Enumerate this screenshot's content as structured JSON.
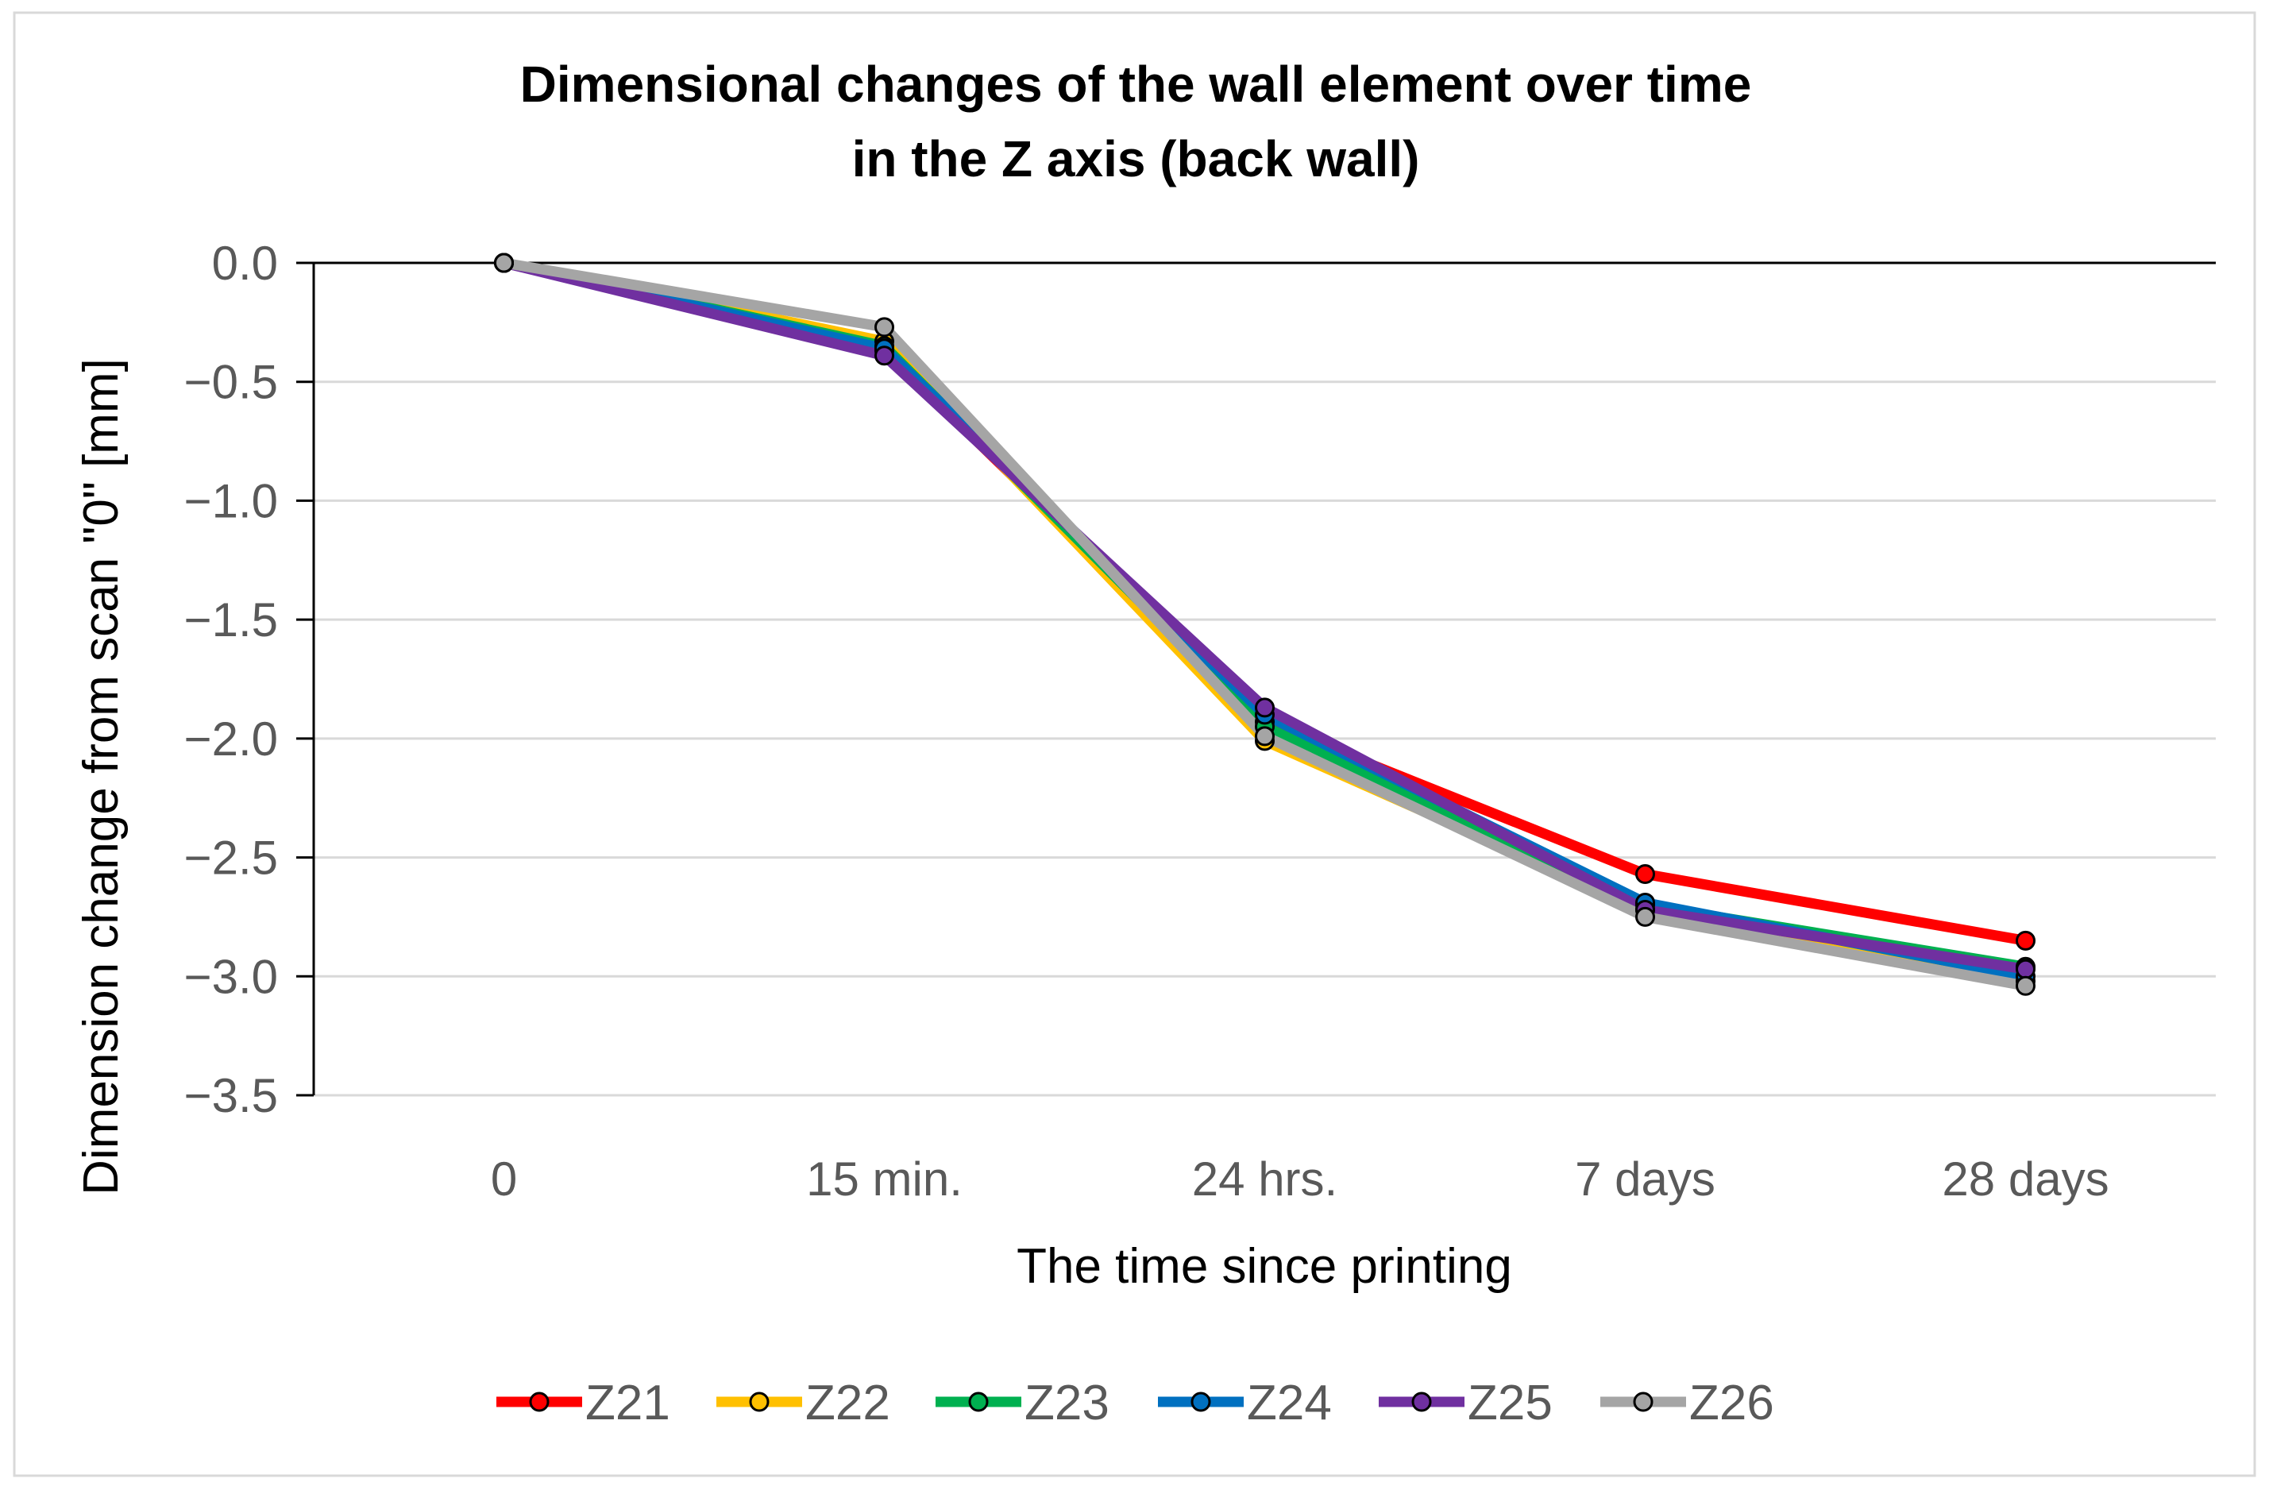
{
  "chart_data": {
    "type": "line",
    "title_lines": [
      "Dimensional changes of the wall element over time",
      "in the Z axis (back wall)"
    ],
    "xlabel": "The time since printing",
    "ylabel": "Dimension change from scan \"0\" [mm]",
    "categories": [
      "0",
      "15 min.",
      "24 hrs.",
      "7 days",
      "28 days"
    ],
    "ylim": [
      -3.5,
      0.0
    ],
    "yticks": [
      0.0,
      -0.5,
      -1.0,
      -1.5,
      -2.0,
      -2.5,
      -3.0,
      -3.5
    ],
    "ytick_labels": [
      "0.0",
      "−0.5",
      "−1.0",
      "−1.5",
      "−2.0",
      "−2.5",
      "−3.0",
      "−3.5"
    ],
    "grid": true,
    "legend_position": "bottom",
    "series": [
      {
        "name": "Z21",
        "color": "#ff0000",
        "values": [
          0.0,
          -0.37,
          -1.93,
          -2.57,
          -2.85
        ]
      },
      {
        "name": "Z22",
        "color": "#ffc000",
        "values": [
          0.0,
          -0.33,
          -2.01,
          -2.72,
          -3.02
        ]
      },
      {
        "name": "Z23",
        "color": "#00b050",
        "values": [
          0.0,
          -0.35,
          -1.95,
          -2.7,
          -2.96
        ]
      },
      {
        "name": "Z24",
        "color": "#0070c0",
        "values": [
          0.0,
          -0.36,
          -1.9,
          -2.69,
          -3.0
        ]
      },
      {
        "name": "Z25",
        "color": "#7030a0",
        "values": [
          0.0,
          -0.39,
          -1.87,
          -2.72,
          -2.97
        ]
      },
      {
        "name": "Z26",
        "color": "#a5a5a5",
        "values": [
          0.0,
          -0.27,
          -1.99,
          -2.75,
          -3.04
        ]
      }
    ]
  }
}
